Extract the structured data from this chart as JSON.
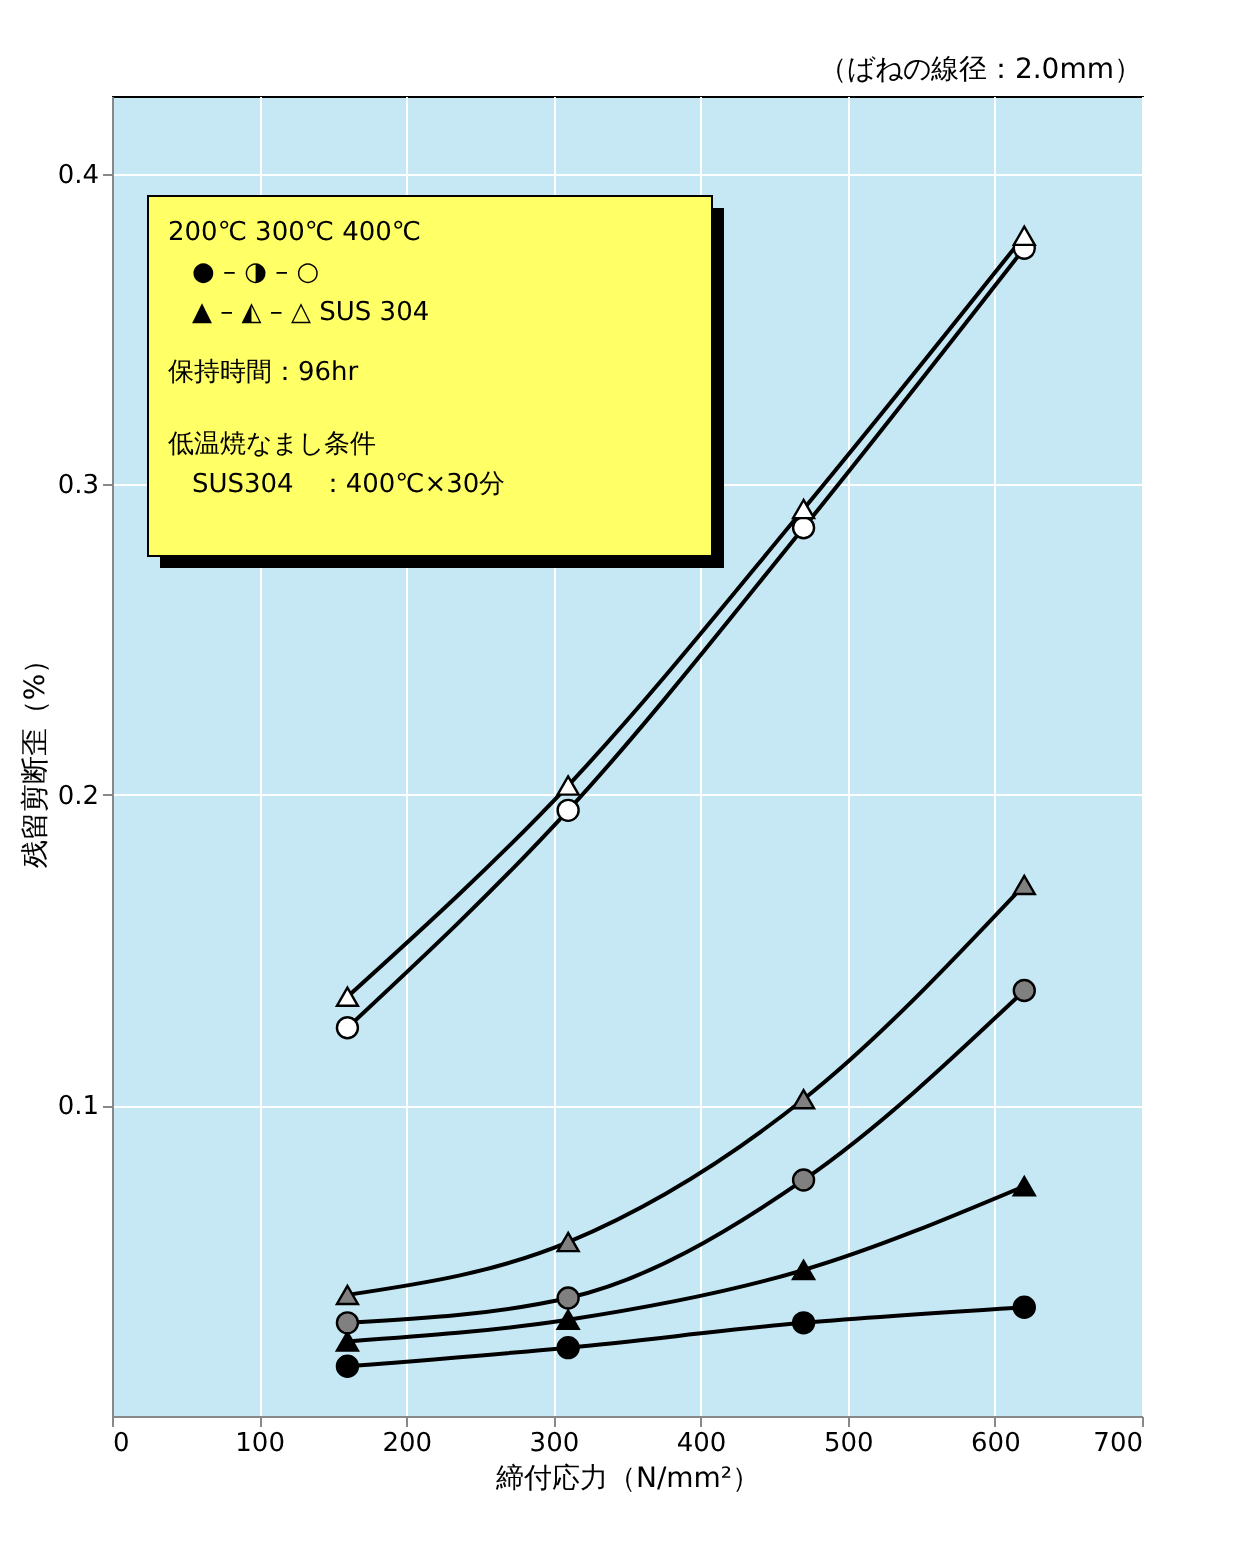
{
  "chart_data": {
    "type": "line",
    "subtitle": "（ばねの線径：2.0mm）",
    "xlabel": "締付応力（N/mm²）",
    "ylabel": "残留剪断歪（%）",
    "x": [
      160,
      310,
      470,
      620
    ],
    "series": [
      {
        "color": "#ffffff",
        "marker": "triangle",
        "values": [
          0.135,
          0.203,
          0.292,
          0.38
        ]
      },
      {
        "color": "#ffffff",
        "marker": "circle",
        "values": [
          0.125,
          0.195,
          0.286,
          0.376
        ]
      },
      {
        "color": "#808080",
        "marker": "triangle",
        "values": [
          0.039,
          0.056,
          0.102,
          0.171
        ]
      },
      {
        "color": "#808080",
        "marker": "circle",
        "values": [
          0.03,
          0.038,
          0.076,
          0.137
        ]
      },
      {
        "color": "#000000",
        "marker": "triangle",
        "values": [
          0.024,
          0.031,
          0.047,
          0.074
        ]
      },
      {
        "color": "#000000",
        "marker": "circle",
        "values": [
          0.016,
          0.022,
          0.03,
          0.035
        ]
      }
    ],
    "annotations": [
      "200℃  300℃  400℃",
      "●  –  ◑  –  ○",
      "▲  –  ◭  –  △   SUS 304",
      "保持時間：96hr",
      "低温焼なまし条件",
      "SUS304　：400℃×30分"
    ],
    "xlim": [
      0,
      700
    ],
    "xticks": [
      0,
      100,
      200,
      300,
      400,
      500,
      600,
      700
    ],
    "ylim": [
      0,
      0.425
    ],
    "yticks": [
      0.1,
      0.2,
      0.3,
      0.4
    ],
    "grid": true,
    "line_style": "solid"
  }
}
